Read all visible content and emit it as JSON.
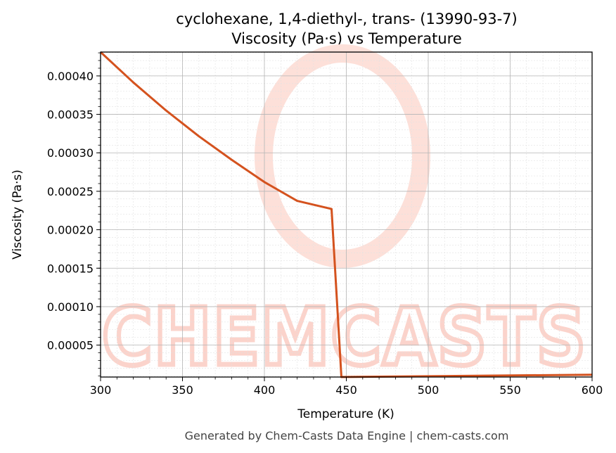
{
  "chart_data": {
    "type": "line",
    "title": "cyclohexane, 1,4-diethyl-, trans- (13990-93-7)",
    "subtitle": "Viscosity (Pa·s) vs Temperature",
    "xlabel": "Temperature (K)",
    "ylabel": "Viscosity (Pa·s)",
    "xlim": [
      300,
      600
    ],
    "ylim": [
      8.5e-06,
      0.000431
    ],
    "xticks": [
      300,
      350,
      400,
      450,
      500,
      550,
      600
    ],
    "xtick_labels": [
      "300",
      "350",
      "400",
      "450",
      "500",
      "550",
      "600"
    ],
    "yticks": [
      5e-05,
      0.0001,
      0.00015,
      0.0002,
      0.00025,
      0.0003,
      0.00035,
      0.0004
    ],
    "ytick_labels": [
      "0.00005",
      "0.00010",
      "0.00015",
      "0.00020",
      "0.00025",
      "0.00030",
      "0.00035",
      "0.00040"
    ],
    "grid": true,
    "line_color": "#d4521e",
    "series": [
      {
        "x": [
          300,
          320,
          340,
          360,
          380,
          400,
          420,
          441,
          447,
          600
        ],
        "y": [
          0.000431,
          0.0003915,
          0.000355,
          0.0003215,
          0.000291,
          0.000262,
          0.0002375,
          0.000227,
          8.5e-06,
          1.15e-05
        ]
      }
    ]
  },
  "footer": "Generated by Chem-Casts Data Engine | chem-casts.com",
  "watermark": {
    "text": "CHEMCASTS",
    "color": "#fbd3cb"
  }
}
